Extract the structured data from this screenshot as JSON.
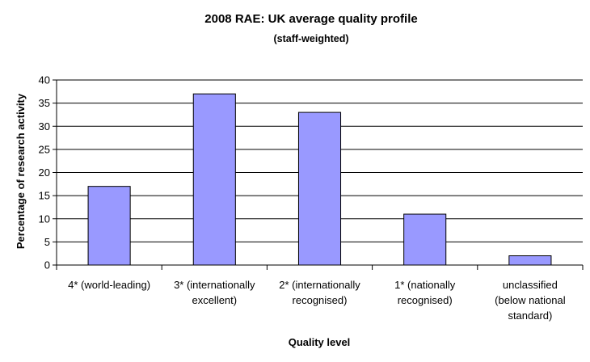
{
  "chart_data": {
    "type": "bar",
    "title": "2008 RAE: UK average quality profile",
    "subtitle": "(staff-weighted)",
    "xlabel": "Quality level",
    "ylabel": "Percentage of research activity",
    "categories": [
      [
        "4* (world-leading)"
      ],
      [
        "3* (internationally",
        "excellent)"
      ],
      [
        "2* (internationally",
        "recognised)"
      ],
      [
        "1* (nationally",
        "recognised)"
      ],
      [
        "unclassified",
        "(below national",
        "standard)"
      ]
    ],
    "values": [
      17,
      37,
      33,
      11,
      2
    ],
    "ylim": [
      0,
      40
    ],
    "yticks": [
      0,
      5,
      10,
      15,
      20,
      25,
      30,
      35,
      40
    ],
    "grid": true,
    "legend": "none",
    "colors": {
      "bar": "#9999ff",
      "bar_border": "#000000",
      "grid": "#000000"
    }
  }
}
